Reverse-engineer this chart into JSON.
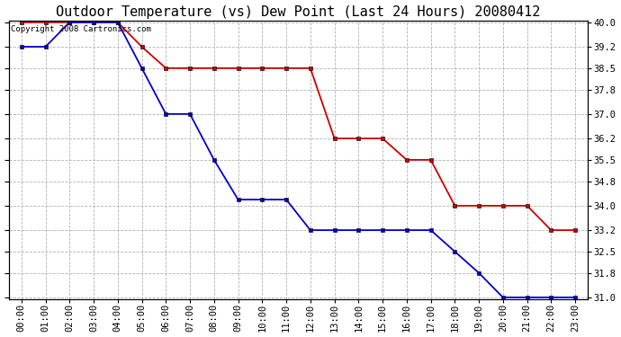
{
  "title": "Outdoor Temperature (vs) Dew Point (Last 24 Hours) 20080412",
  "copyright": "Copyright 2008 Cartronics.com",
  "hours": [
    "00:00",
    "01:00",
    "02:00",
    "03:00",
    "04:00",
    "05:00",
    "06:00",
    "07:00",
    "08:00",
    "09:00",
    "10:00",
    "11:00",
    "12:00",
    "13:00",
    "14:00",
    "15:00",
    "16:00",
    "17:00",
    "18:00",
    "19:00",
    "20:00",
    "21:00",
    "22:00",
    "23:00"
  ],
  "temp": [
    40.0,
    40.0,
    40.0,
    40.0,
    40.0,
    39.2,
    38.5,
    38.5,
    38.5,
    38.5,
    38.5,
    38.5,
    38.5,
    36.2,
    36.2,
    36.2,
    35.5,
    35.5,
    34.0,
    34.0,
    34.0,
    34.0,
    33.2,
    33.2
  ],
  "dew": [
    39.2,
    39.2,
    40.0,
    40.0,
    40.0,
    38.5,
    37.0,
    37.0,
    35.5,
    34.2,
    34.2,
    34.2,
    33.2,
    33.2,
    33.2,
    33.2,
    33.2,
    33.2,
    32.5,
    31.8,
    31.0,
    31.0,
    31.0,
    31.0
  ],
  "temp_color": "#cc0000",
  "dew_color": "#0000cc",
  "bg_color": "#ffffff",
  "grid_color": "#aaaaaa",
  "ylim_min": 31.0,
  "ylim_max": 40.0,
  "yticks": [
    31.0,
    31.8,
    32.5,
    33.2,
    34.0,
    34.8,
    35.5,
    36.2,
    37.0,
    37.8,
    38.5,
    39.2,
    40.0
  ],
  "title_fontsize": 11,
  "copyright_fontsize": 6.5,
  "tick_fontsize": 7.5
}
